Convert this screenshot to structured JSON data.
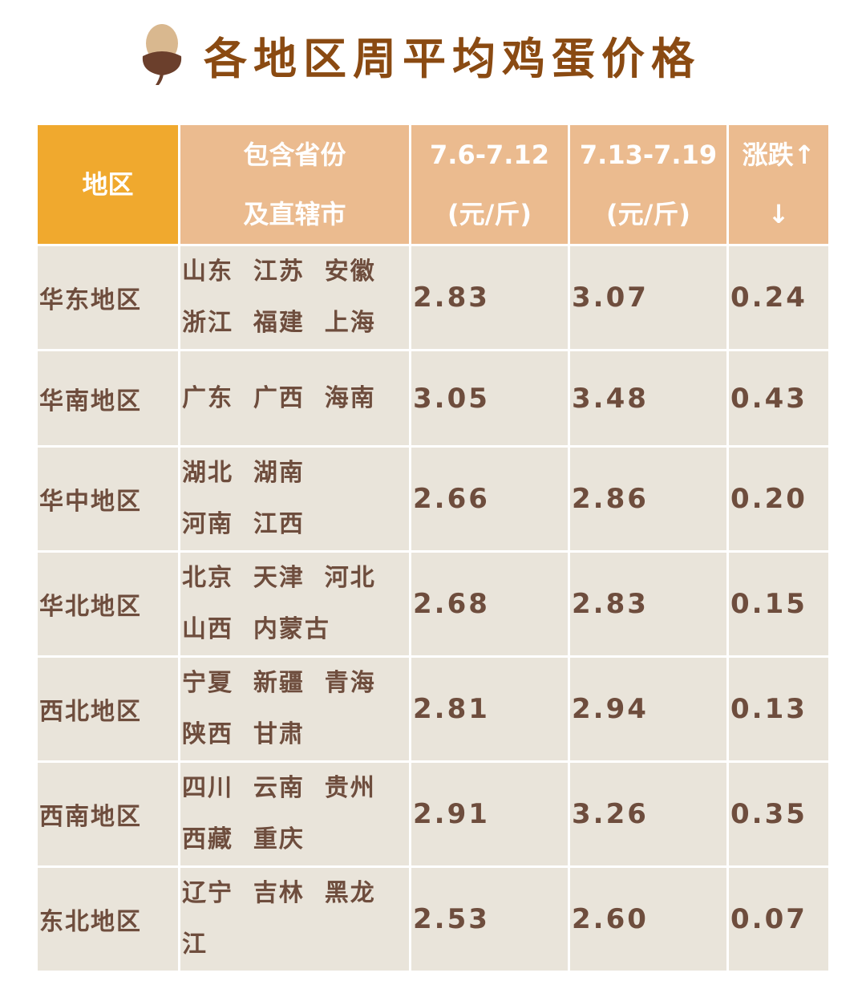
{
  "title": "各地区周平均鸡蛋价格",
  "icon": "acorn-icon",
  "colors": {
    "title": "#8a4a12",
    "header_first": "#f0a92e",
    "header": "#ebbb8f",
    "body": "#e9e4da",
    "text": "#6e4d3d"
  },
  "table": {
    "headers": [
      {
        "line1": "地区",
        "line2": ""
      },
      {
        "line1": "包含省份",
        "line2": "及直辖市"
      },
      {
        "line1": "7.6-7.12",
        "line2": "(元/斤)"
      },
      {
        "line1": "7.13-7.19",
        "line2": "(元/斤)"
      },
      {
        "line1": "涨跌↑",
        "line2": "↓"
      }
    ],
    "rows": [
      {
        "region": "华东地区",
        "line1": "山东  江苏  安徽",
        "line2": "浙江  福建  上海",
        "prev": "2.83",
        "curr": "3.07",
        "change": "0.24"
      },
      {
        "region": "华南地区",
        "line1": "广东  广西  海南",
        "line2": "",
        "prev": "3.05",
        "curr": "3.48",
        "change": "0.43"
      },
      {
        "region": "华中地区",
        "line1": "湖北  湖南",
        "line2": "河南  江西",
        "prev": "2.66",
        "curr": "2.86",
        "change": "0.20"
      },
      {
        "region": "华北地区",
        "line1": "北京  天津  河北",
        "line2": "山西  内蒙古",
        "prev": "2.68",
        "curr": "2.83",
        "change": "0.15"
      },
      {
        "region": "西北地区",
        "line1": "宁夏  新疆  青海",
        "line2": "陕西  甘肃",
        "prev": "2.81",
        "curr": "2.94",
        "change": "0.13"
      },
      {
        "region": "西南地区",
        "line1": "四川  云南  贵州",
        "line2": "西藏  重庆",
        "prev": "2.91",
        "curr": "3.26",
        "change": "0.35"
      },
      {
        "region": "东北地区",
        "line1": "辽宁  吉林  黑龙",
        "line2": "江",
        "prev": "2.53",
        "curr": "2.60",
        "change": "0.07"
      }
    ]
  }
}
